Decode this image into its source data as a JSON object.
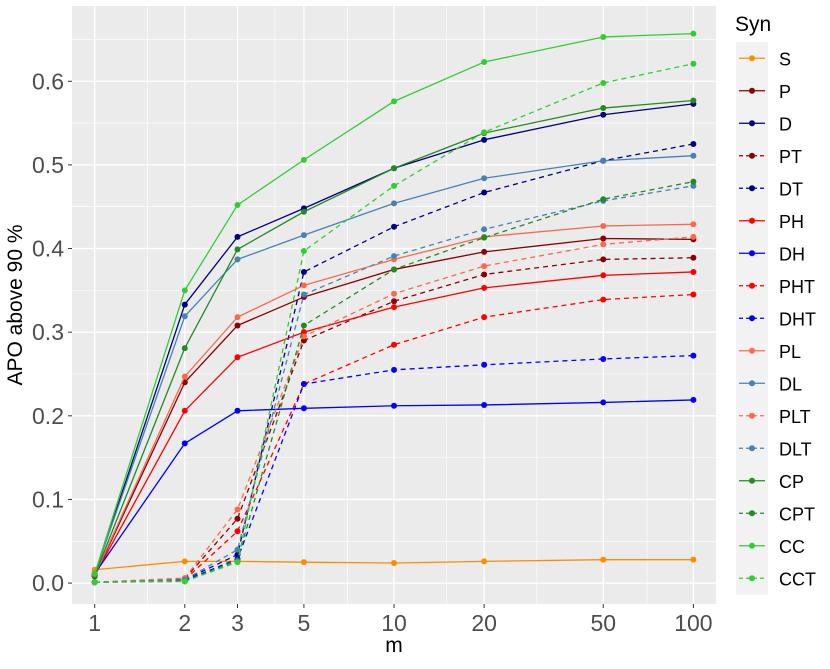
{
  "chart_data": {
    "type": "line",
    "xlabel": "m",
    "ylabel": "APO above 90 %",
    "x_scale": "log",
    "x": [
      1,
      2,
      3,
      5,
      10,
      20,
      50,
      100
    ],
    "x_ticks": [
      "1",
      "2",
      "3",
      "5",
      "10",
      "20",
      "50",
      "100"
    ],
    "ylim": [
      -0.025,
      0.69
    ],
    "y_ticks": [
      "0.0",
      "0.1",
      "0.2",
      "0.3",
      "0.4",
      "0.5",
      "0.6"
    ],
    "legend_title": "Syn",
    "legend_position": "right",
    "grid": true,
    "series": [
      {
        "name": "S",
        "color": "#FF8C00",
        "dashed": false,
        "values": [
          0.016,
          0.026,
          0.026,
          0.025,
          0.024,
          0.026,
          0.028,
          0.028
        ]
      },
      {
        "name": "P",
        "color": "#8B0000",
        "dashed": false,
        "values": [
          0.008,
          0.24,
          0.308,
          0.342,
          0.375,
          0.396,
          0.412,
          0.411
        ]
      },
      {
        "name": "D",
        "color": "#000080",
        "dashed": false,
        "values": [
          0.01,
          0.333,
          0.414,
          0.448,
          0.496,
          0.53,
          0.56,
          0.573
        ]
      },
      {
        "name": "PT",
        "color": "#8B0000",
        "dashed": true,
        "values": [
          0.001,
          0.005,
          0.077,
          0.29,
          0.337,
          0.369,
          0.387,
          0.389
        ]
      },
      {
        "name": "DT",
        "color": "#000080",
        "dashed": true,
        "values": [
          0.001,
          0.004,
          0.034,
          0.372,
          0.426,
          0.467,
          0.505,
          0.525
        ]
      },
      {
        "name": "PH",
        "color": "#FF0000",
        "dashed": false,
        "values": [
          0.009,
          0.206,
          0.27,
          0.3,
          0.33,
          0.353,
          0.368,
          0.372
        ]
      },
      {
        "name": "DH",
        "color": "#0000FF",
        "dashed": false,
        "values": [
          0.011,
          0.167,
          0.206,
          0.209,
          0.212,
          0.213,
          0.216,
          0.219
        ]
      },
      {
        "name": "PHT",
        "color": "#FF0000",
        "dashed": true,
        "values": [
          0.001,
          0.004,
          0.062,
          0.238,
          0.285,
          0.318,
          0.339,
          0.345
        ]
      },
      {
        "name": "DHT",
        "color": "#0000FF",
        "dashed": true,
        "values": [
          0.001,
          0.003,
          0.029,
          0.238,
          0.255,
          0.261,
          0.268,
          0.272
        ]
      },
      {
        "name": "PL",
        "color": "#FA6A4A",
        "dashed": false,
        "values": [
          0.009,
          0.247,
          0.318,
          0.356,
          0.387,
          0.414,
          0.427,
          0.429
        ]
      },
      {
        "name": "DL",
        "color": "#4682B4",
        "dashed": false,
        "values": [
          0.011,
          0.319,
          0.387,
          0.416,
          0.454,
          0.484,
          0.505,
          0.511
        ]
      },
      {
        "name": "PLT",
        "color": "#FA6A4A",
        "dashed": true,
        "values": [
          0.001,
          0.006,
          0.088,
          0.295,
          0.346,
          0.379,
          0.405,
          0.414
        ]
      },
      {
        "name": "DLT",
        "color": "#4682B4",
        "dashed": true,
        "values": [
          0.001,
          0.004,
          0.04,
          0.345,
          0.391,
          0.423,
          0.457,
          0.475
        ]
      },
      {
        "name": "CP",
        "color": "#228B22",
        "dashed": false,
        "values": [
          0.009,
          0.281,
          0.399,
          0.444,
          0.496,
          0.538,
          0.568,
          0.577
        ]
      },
      {
        "name": "CPT",
        "color": "#228B22",
        "dashed": true,
        "values": [
          0.001,
          0.002,
          0.027,
          0.308,
          0.375,
          0.413,
          0.459,
          0.48
        ]
      },
      {
        "name": "CC",
        "color": "#32CD32",
        "dashed": false,
        "values": [
          0.011,
          0.35,
          0.452,
          0.506,
          0.576,
          0.623,
          0.653,
          0.657
        ]
      },
      {
        "name": "CCT",
        "color": "#32CD32",
        "dashed": true,
        "values": [
          0.001,
          0.002,
          0.025,
          0.397,
          0.475,
          0.539,
          0.598,
          0.621
        ]
      }
    ]
  }
}
